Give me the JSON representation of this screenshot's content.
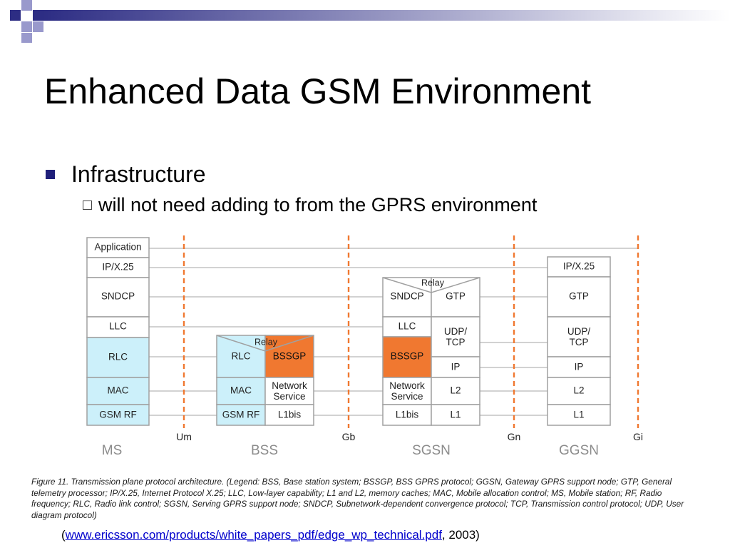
{
  "slide": {
    "title": "Enhanced Data GSM Environment",
    "bullet": "Infrastructure",
    "sub_bullet": "will not need adding to from the GPRS environment"
  },
  "diagram": {
    "interfaces": [
      "Um",
      "Gb",
      "Gn",
      "Gi"
    ],
    "nodes": [
      "MS",
      "BSS",
      "SGSN",
      "GGSN"
    ],
    "ms_stack": [
      "Application",
      "IP/X.25",
      "SNDCP",
      "LLC",
      "RLC",
      "MAC",
      "GSM RF"
    ],
    "bss_stack": {
      "relay": "Relay",
      "left": [
        "RLC",
        "MAC",
        "GSM RF"
      ],
      "right": [
        "BSSGP",
        "Network Service",
        "L1bis"
      ]
    },
    "sgsn_stack": {
      "relay": "Relay",
      "left": [
        "SNDCP",
        "LLC",
        "BSSGP",
        "Network Service",
        "L1bis"
      ],
      "right": [
        "GTP",
        "UDP/ TCP",
        "IP",
        "L2",
        "L1"
      ]
    },
    "ggsn_stack": [
      "IP/X.25",
      "GTP",
      "UDP/ TCP",
      "IP",
      "L2",
      "L1"
    ]
  },
  "caption": "Figure 11. Transmission plane protocol architecture. (Legend: BSS, Base station system; BSSGP, BSS GPRS protocol; GGSN, Gateway GPRS support node; GTP, General telemetry processor; IP/X.25, Internet Protocol X.25; LLC, Low-layer capability; L1 and L2, memory caches; MAC, Mobile allocation control; MS, Mobile station; RF, Radio frequency; RLC, Radio link control; SGSN, Serving GPRS support node; SNDCP, Subnetwork-dependent convergence protocol; TCP, Transmission control protocol; UDP, User diagram protocol)",
  "source": {
    "open": "(",
    "link": "www.ericsson.com/products/white_papers_pdf/edge_wp_technical.pdf",
    "tail": ", 2003)"
  },
  "colors": {
    "title_bar_square": "#2d2d84",
    "light_square": "#9999cc",
    "rlc_mac_fill": "#ccf0fa",
    "bssgp_fill": "#f07830",
    "interface_line": "#f07830",
    "box_border": "#a0a0a0"
  }
}
